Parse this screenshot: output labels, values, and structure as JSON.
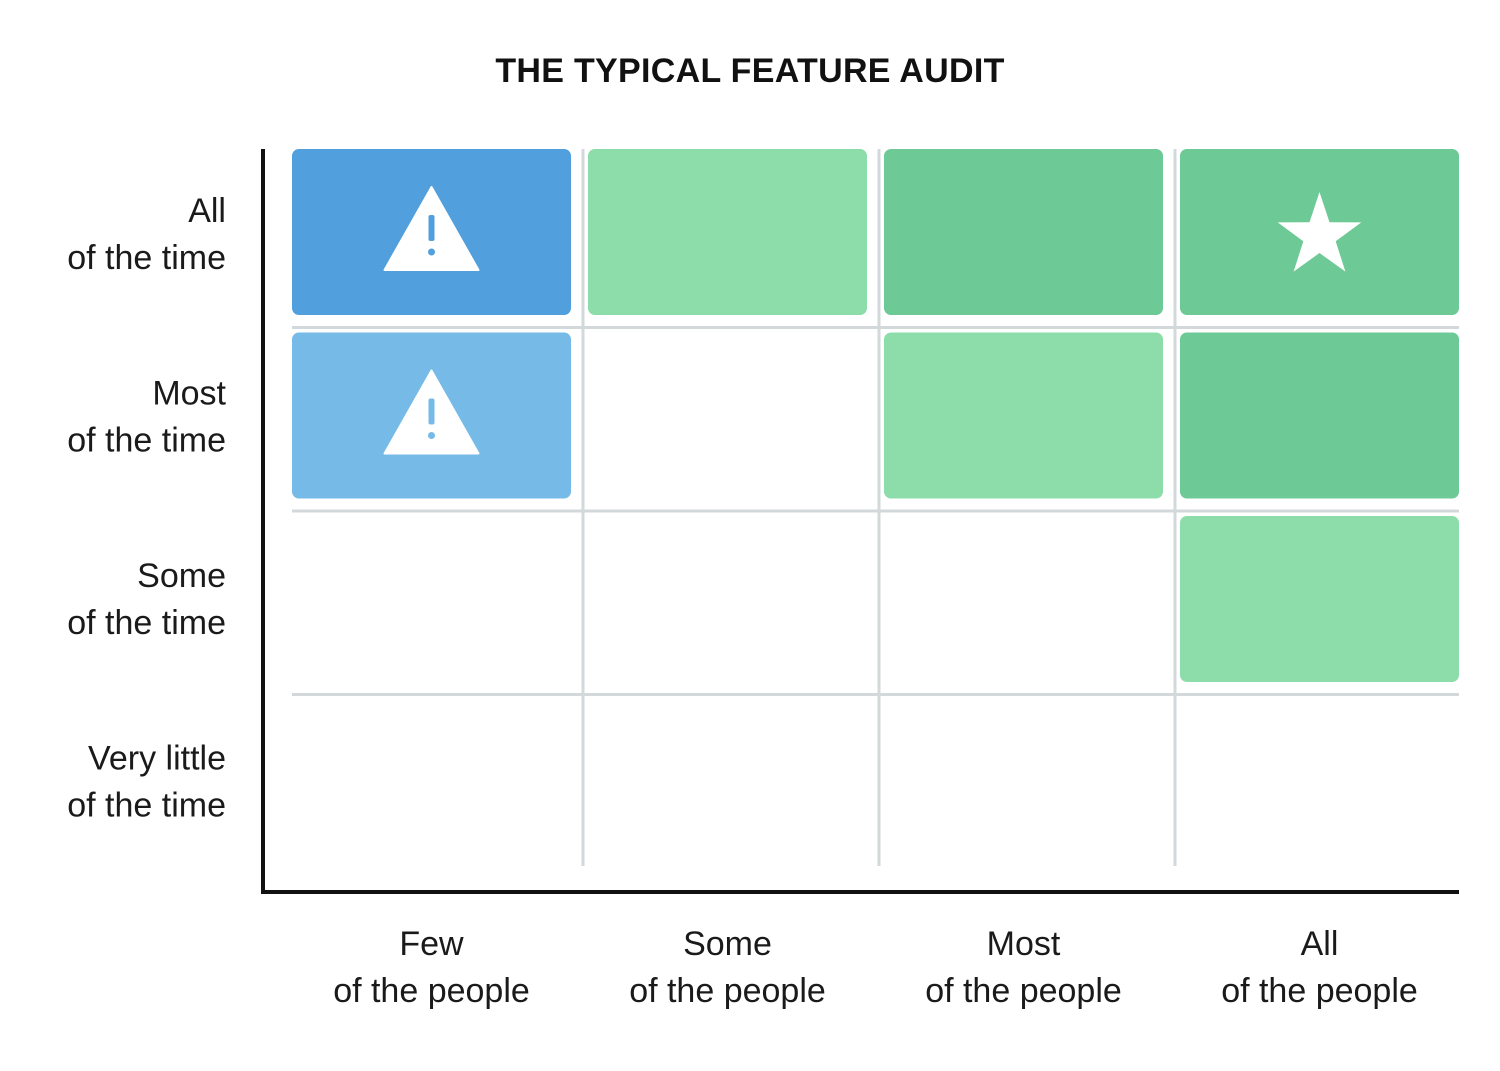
{
  "title": "THE TYPICAL FEATURE AUDIT",
  "chart_data": {
    "type": "heatmap",
    "title": "THE TYPICAL FEATURE AUDIT",
    "x_categories": [
      [
        "Few",
        "of the people"
      ],
      [
        "Some",
        "of the people"
      ],
      [
        "Most",
        "of the people"
      ],
      [
        "All",
        "of the people"
      ]
    ],
    "y_categories": [
      [
        "All",
        "of the time"
      ],
      [
        "Most",
        "of the time"
      ],
      [
        "Some",
        "of the time"
      ],
      [
        "Very little",
        "of the time"
      ]
    ],
    "grid": true,
    "colors": {
      "blue_dark": "#519fdc",
      "blue_light": "#76bae8",
      "green_dark": "#6dc996",
      "green_light": "#8cdda9",
      "grid_line": "#d3d9da",
      "axis": "#111111",
      "label": "#1a1a1a"
    },
    "cells": [
      {
        "row": 0,
        "col": 0,
        "color": "blue_dark",
        "icon": "warning-icon"
      },
      {
        "row": 0,
        "col": 1,
        "color": "green_light"
      },
      {
        "row": 0,
        "col": 2,
        "color": "green_dark"
      },
      {
        "row": 0,
        "col": 3,
        "color": "green_dark",
        "icon": "star-icon"
      },
      {
        "row": 1,
        "col": 0,
        "color": "blue_light",
        "icon": "warning-icon"
      },
      {
        "row": 1,
        "col": 2,
        "color": "green_light"
      },
      {
        "row": 1,
        "col": 3,
        "color": "green_dark"
      },
      {
        "row": 2,
        "col": 3,
        "color": "green_light"
      }
    ]
  }
}
